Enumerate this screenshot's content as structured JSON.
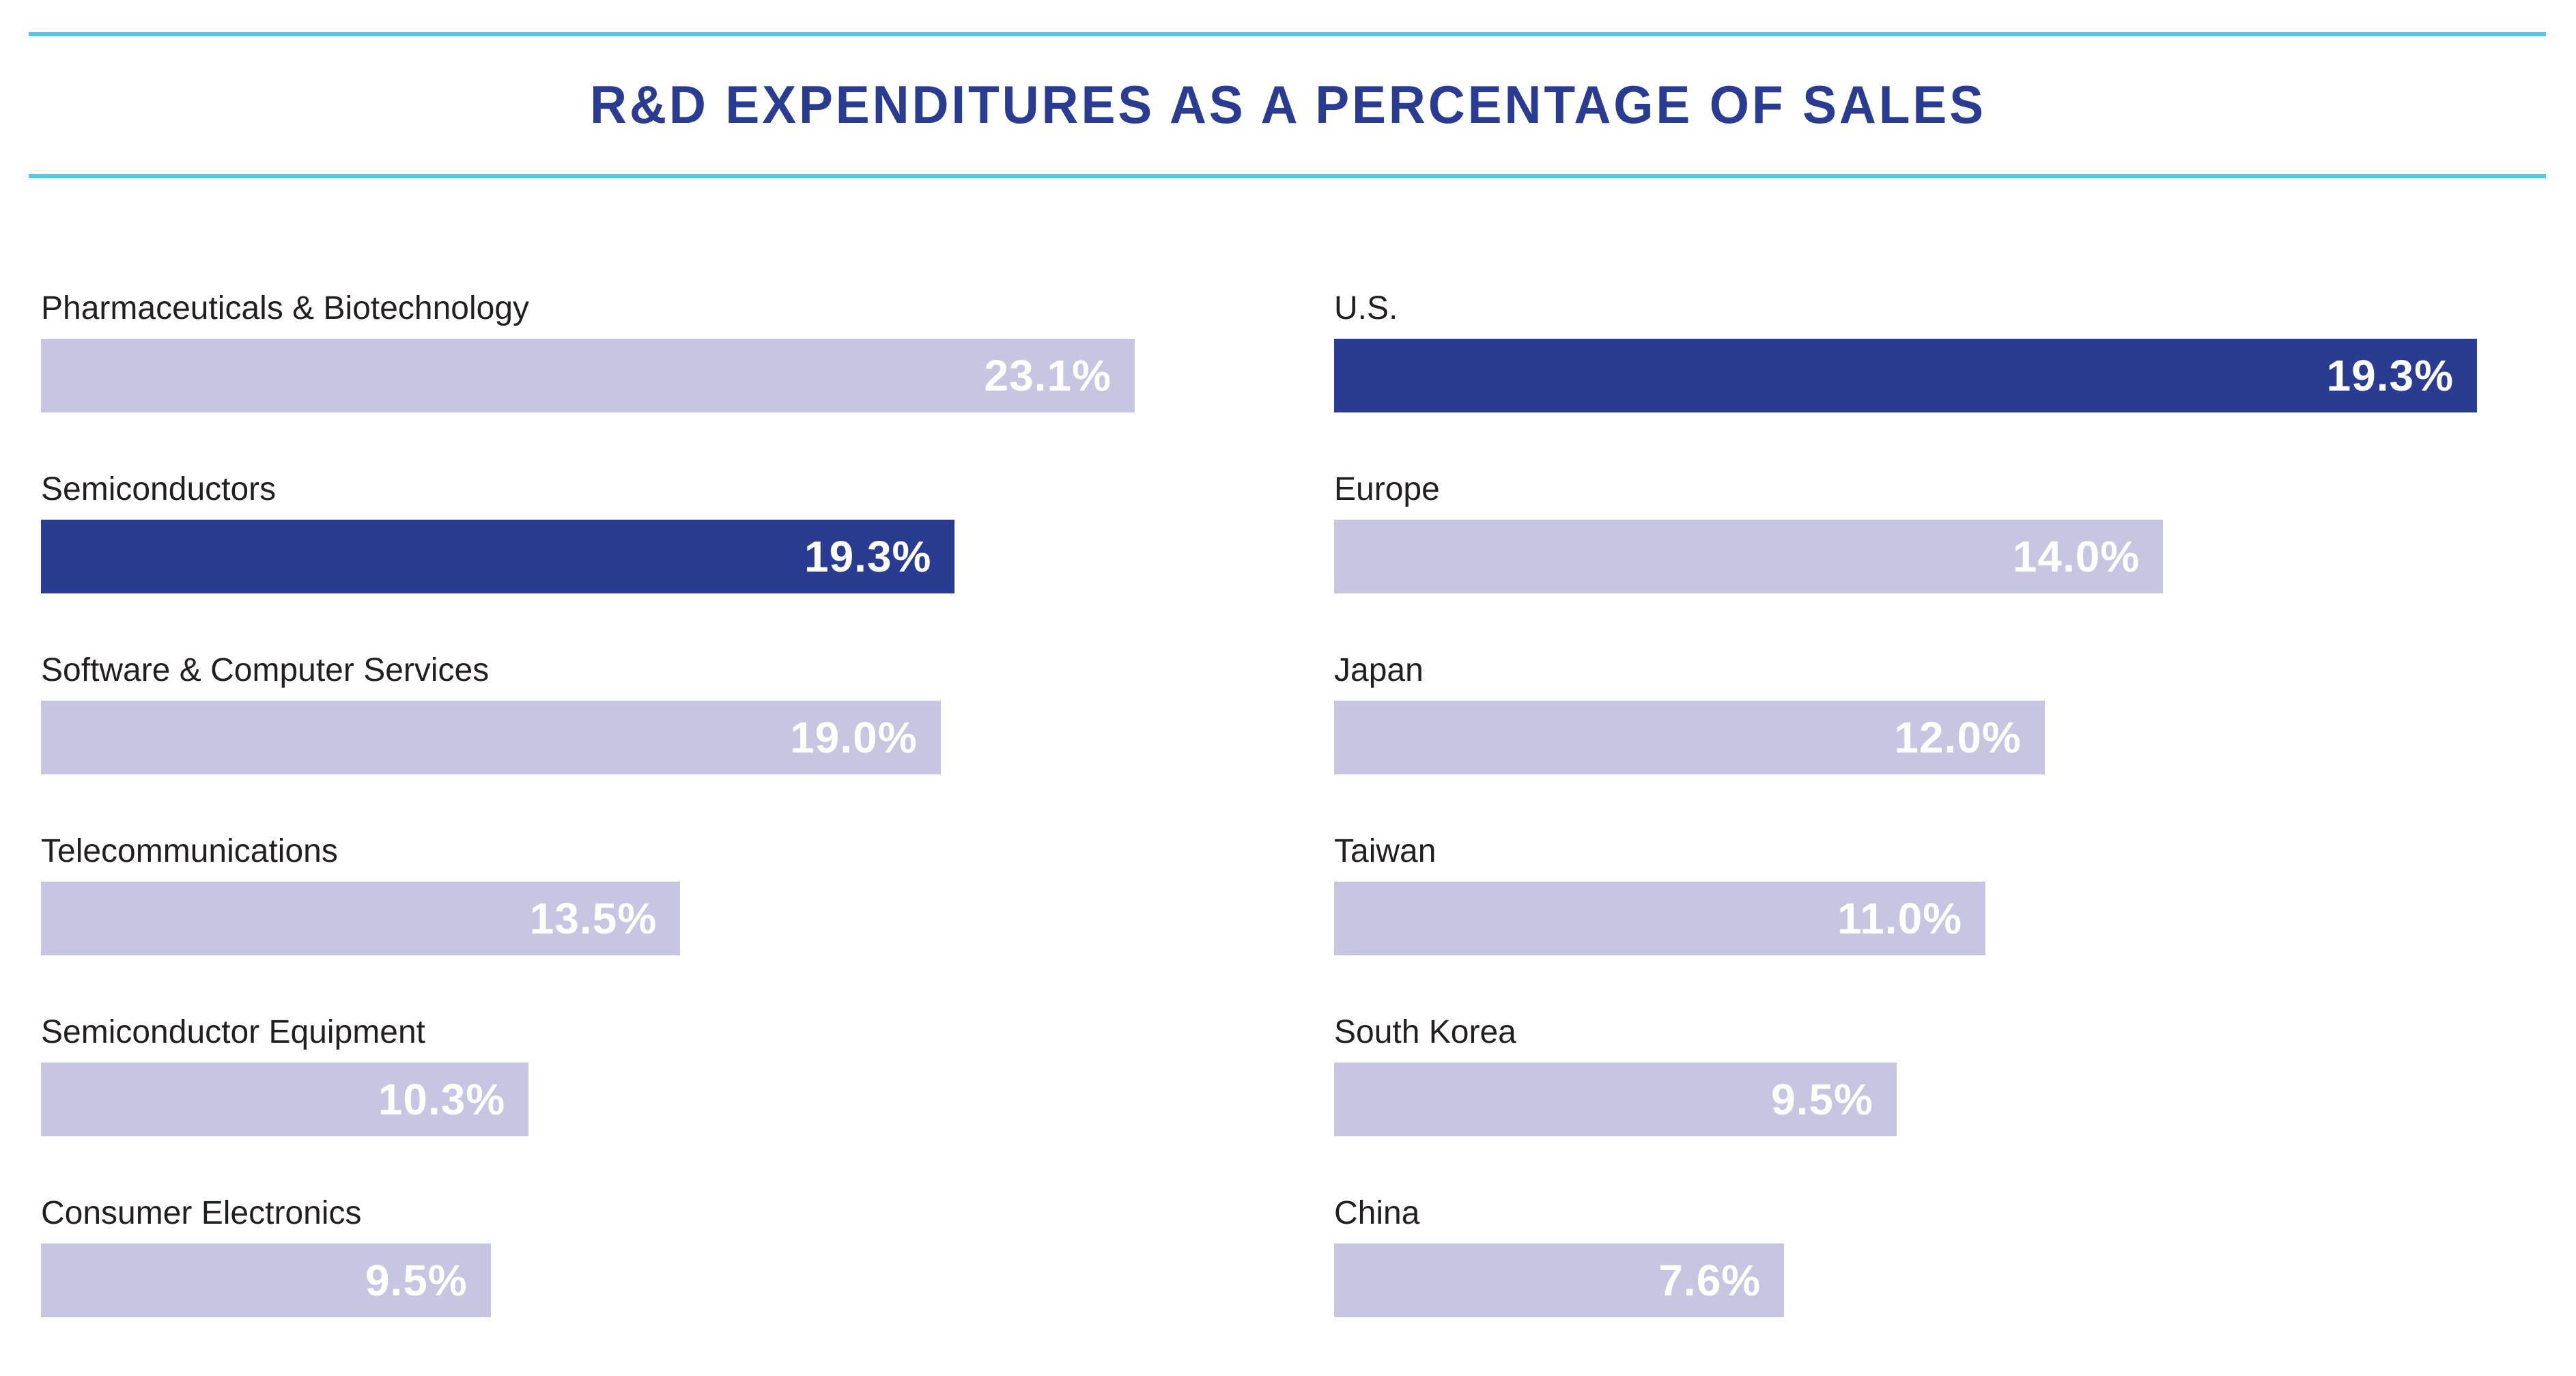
{
  "colors": {
    "highlight_bar": "#2a3c92",
    "default_bar": "#c6c5e2",
    "rule_line": "#57c5ea",
    "title_text": "#2a3c92",
    "label_text": "#231f20",
    "value_text": "#ffffff"
  },
  "chart_data": {
    "type": "bar",
    "orientation": "horizontal",
    "title": "R&D EXPENDITURES AS A PERCENTAGE OF SALES",
    "unit": "% of sales",
    "legend": "none",
    "grid": false,
    "layout_hint": "two side-by-side bar groups, each independently scaled so its maximum value spans the full column width; value labels printed in white inside right end of each bar",
    "groups": [
      {
        "position": "left",
        "axis_max": 23.1,
        "bars": [
          {
            "label": "Pharmaceuticals & Biotechnology",
            "value": 23.1,
            "value_label": "23.1%",
            "highlighted": false
          },
          {
            "label": "Semiconductors",
            "value": 19.3,
            "value_label": "19.3%",
            "highlighted": true
          },
          {
            "label": "Software & Computer Services",
            "value": 19.0,
            "value_label": "19.0%",
            "highlighted": false
          },
          {
            "label": "Telecommunications",
            "value": 13.5,
            "value_label": "13.5%",
            "highlighted": false
          },
          {
            "label": "Semiconductor Equipment",
            "value": 10.3,
            "value_label": "10.3%",
            "highlighted": false
          },
          {
            "label": "Consumer Electronics",
            "value": 9.5,
            "value_label": "9.5%",
            "highlighted": false
          }
        ]
      },
      {
        "position": "right",
        "axis_max": 19.3,
        "bars": [
          {
            "label": "U.S.",
            "value": 19.3,
            "value_label": "19.3%",
            "highlighted": true
          },
          {
            "label": "Europe",
            "value": 14.0,
            "value_label": "14.0%",
            "highlighted": false
          },
          {
            "label": "Japan",
            "value": 12.0,
            "value_label": "12.0%",
            "highlighted": false
          },
          {
            "label": "Taiwan",
            "value": 11.0,
            "value_label": "11.0%",
            "highlighted": false
          },
          {
            "label": "South Korea",
            "value": 9.5,
            "value_label": "9.5%",
            "highlighted": false
          },
          {
            "label": "China",
            "value": 7.6,
            "value_label": "7.6%",
            "highlighted": false
          }
        ]
      }
    ]
  }
}
